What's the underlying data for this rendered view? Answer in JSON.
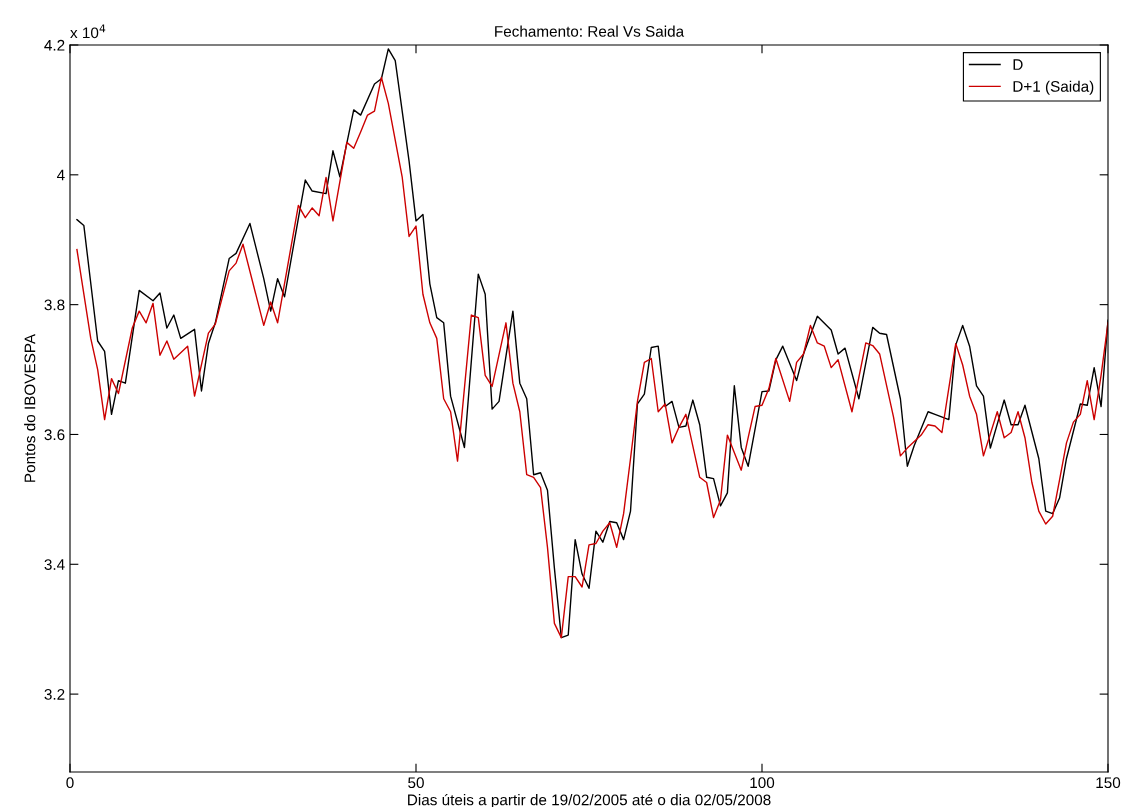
{
  "chart_data": {
    "type": "line",
    "title": "Fechamento: Real Vs Saida",
    "xlabel": "Dias úteis a partir de 19/02/2005 até o dia 02/05/2008",
    "ylabel": "Pontos do IBOVESPA",
    "annotations": [
      "x 10$^{4}$"
    ],
    "xlim": [
      0,
      150
    ],
    "xticks": [
      0,
      50,
      100,
      150
    ],
    "ylim": [
      3.08,
      4.2
    ],
    "yticks": [
      3.2,
      3.4,
      3.6,
      3.8,
      4,
      4.2
    ],
    "grid": false,
    "legend": "top right",
    "marker": "none",
    "line_style": "solid",
    "series": [
      {
        "name": "D",
        "color": "#000000",
        "x": [
          1,
          2,
          4,
          5,
          6,
          7,
          8,
          10,
          12,
          13,
          14,
          15,
          16,
          18,
          19,
          20,
          21,
          23,
          24,
          26,
          28,
          29,
          30,
          31,
          33,
          34,
          35,
          37,
          38,
          39,
          41,
          42,
          44,
          45,
          46,
          47,
          49,
          50,
          51,
          52,
          53,
          54,
          55,
          57,
          59,
          60,
          61,
          62,
          64,
          65,
          66,
          67,
          68,
          69,
          70,
          71,
          72,
          73,
          74,
          75,
          76,
          77,
          78,
          79,
          80,
          81,
          82,
          83,
          84,
          85,
          86,
          87,
          88,
          89,
          90,
          91,
          92,
          93,
          94,
          95,
          96,
          97,
          98,
          100,
          101,
          102,
          103,
          105,
          106,
          108,
          110,
          111,
          112,
          114,
          116,
          117,
          118,
          120,
          121,
          122,
          124,
          125,
          127,
          128,
          129,
          130,
          131,
          132,
          133,
          135,
          136,
          137,
          138,
          140,
          141,
          142,
          143,
          144,
          146,
          147,
          148,
          149,
          150
        ],
        "values": [
          3.931,
          3.922,
          3.744,
          3.728,
          3.631,
          3.683,
          3.679,
          3.822,
          3.806,
          3.818,
          3.764,
          3.784,
          3.748,
          3.762,
          3.667,
          3.74,
          3.772,
          3.871,
          3.879,
          3.925,
          3.84,
          3.79,
          3.84,
          3.812,
          3.933,
          3.992,
          3.975,
          3.971,
          4.037,
          3.997,
          4.1,
          4.092,
          4.14,
          4.148,
          4.194,
          4.176,
          4.021,
          3.929,
          3.939,
          3.832,
          3.78,
          3.772,
          3.659,
          3.58,
          3.847,
          3.816,
          3.639,
          3.651,
          3.79,
          3.679,
          3.655,
          3.538,
          3.541,
          3.514,
          3.394,
          3.287,
          3.291,
          3.438,
          3.385,
          3.363,
          3.451,
          3.434,
          3.466,
          3.464,
          3.438,
          3.482,
          3.647,
          3.662,
          3.734,
          3.736,
          3.643,
          3.651,
          3.611,
          3.613,
          3.653,
          3.615,
          3.534,
          3.532,
          3.49,
          3.51,
          3.675,
          3.58,
          3.551,
          3.666,
          3.667,
          3.715,
          3.736,
          3.683,
          3.724,
          3.782,
          3.761,
          3.724,
          3.733,
          3.655,
          3.765,
          3.756,
          3.754,
          3.655,
          3.551,
          3.583,
          3.635,
          3.631,
          3.623,
          3.738,
          3.768,
          3.736,
          3.675,
          3.659,
          3.579,
          3.653,
          3.615,
          3.615,
          3.645,
          3.563,
          3.482,
          3.478,
          3.502,
          3.563,
          3.647,
          3.645,
          3.703,
          3.643,
          3.776
        ]
      },
      {
        "name": "D+1 (Saida)",
        "color": "#cc0000",
        "x": [
          1,
          3,
          4,
          5,
          6,
          7,
          9,
          10,
          11,
          12,
          13,
          14,
          15,
          17,
          18,
          20,
          21,
          23,
          24,
          25,
          28,
          29,
          30,
          33,
          34,
          35,
          36,
          37,
          38,
          40,
          41,
          42,
          43,
          44,
          45,
          46,
          48,
          49,
          50,
          51,
          52,
          53,
          54,
          55,
          56,
          58,
          59,
          60,
          61,
          63,
          64,
          65,
          66,
          67,
          68,
          69,
          70,
          71,
          72,
          73,
          74,
          75,
          76,
          77,
          78,
          79,
          80,
          81,
          82,
          83,
          84,
          85,
          86,
          87,
          88,
          89,
          91,
          92,
          93,
          94,
          95,
          97,
          98,
          99,
          100,
          101,
          102,
          104,
          105,
          106,
          107,
          108,
          109,
          110,
          111,
          113,
          115,
          116,
          117,
          119,
          120,
          121,
          123,
          124,
          125,
          126,
          128,
          129,
          130,
          131,
          132,
          134,
          135,
          136,
          137,
          138,
          139,
          140,
          141,
          142,
          143,
          144,
          145,
          146,
          147,
          148,
          149,
          150
        ],
        "values": [
          3.885,
          3.748,
          3.7,
          3.623,
          3.686,
          3.663,
          3.764,
          3.79,
          3.772,
          3.802,
          3.722,
          3.744,
          3.716,
          3.736,
          3.659,
          3.756,
          3.77,
          3.852,
          3.864,
          3.893,
          3.768,
          3.804,
          3.772,
          3.953,
          3.934,
          3.949,
          3.937,
          3.996,
          3.929,
          4.05,
          4.041,
          4.066,
          4.092,
          4.098,
          4.15,
          4.11,
          3.997,
          3.905,
          3.921,
          3.816,
          3.772,
          3.748,
          3.655,
          3.635,
          3.559,
          3.784,
          3.78,
          3.691,
          3.674,
          3.772,
          3.679,
          3.635,
          3.538,
          3.534,
          3.518,
          3.426,
          3.309,
          3.287,
          3.381,
          3.381,
          3.365,
          3.43,
          3.432,
          3.451,
          3.464,
          3.426,
          3.478,
          3.563,
          3.651,
          3.711,
          3.717,
          3.635,
          3.647,
          3.587,
          3.611,
          3.631,
          3.534,
          3.526,
          3.472,
          3.499,
          3.599,
          3.545,
          3.595,
          3.643,
          3.645,
          3.671,
          3.717,
          3.651,
          3.711,
          3.724,
          3.768,
          3.741,
          3.736,
          3.703,
          3.715,
          3.635,
          3.741,
          3.737,
          3.724,
          3.627,
          3.567,
          3.579,
          3.599,
          3.615,
          3.613,
          3.603,
          3.74,
          3.707,
          3.659,
          3.631,
          3.567,
          3.635,
          3.595,
          3.603,
          3.635,
          3.595,
          3.526,
          3.482,
          3.462,
          3.474,
          3.53,
          3.587,
          3.619,
          3.631,
          3.683,
          3.623,
          3.691,
          3.772
        ]
      }
    ]
  }
}
